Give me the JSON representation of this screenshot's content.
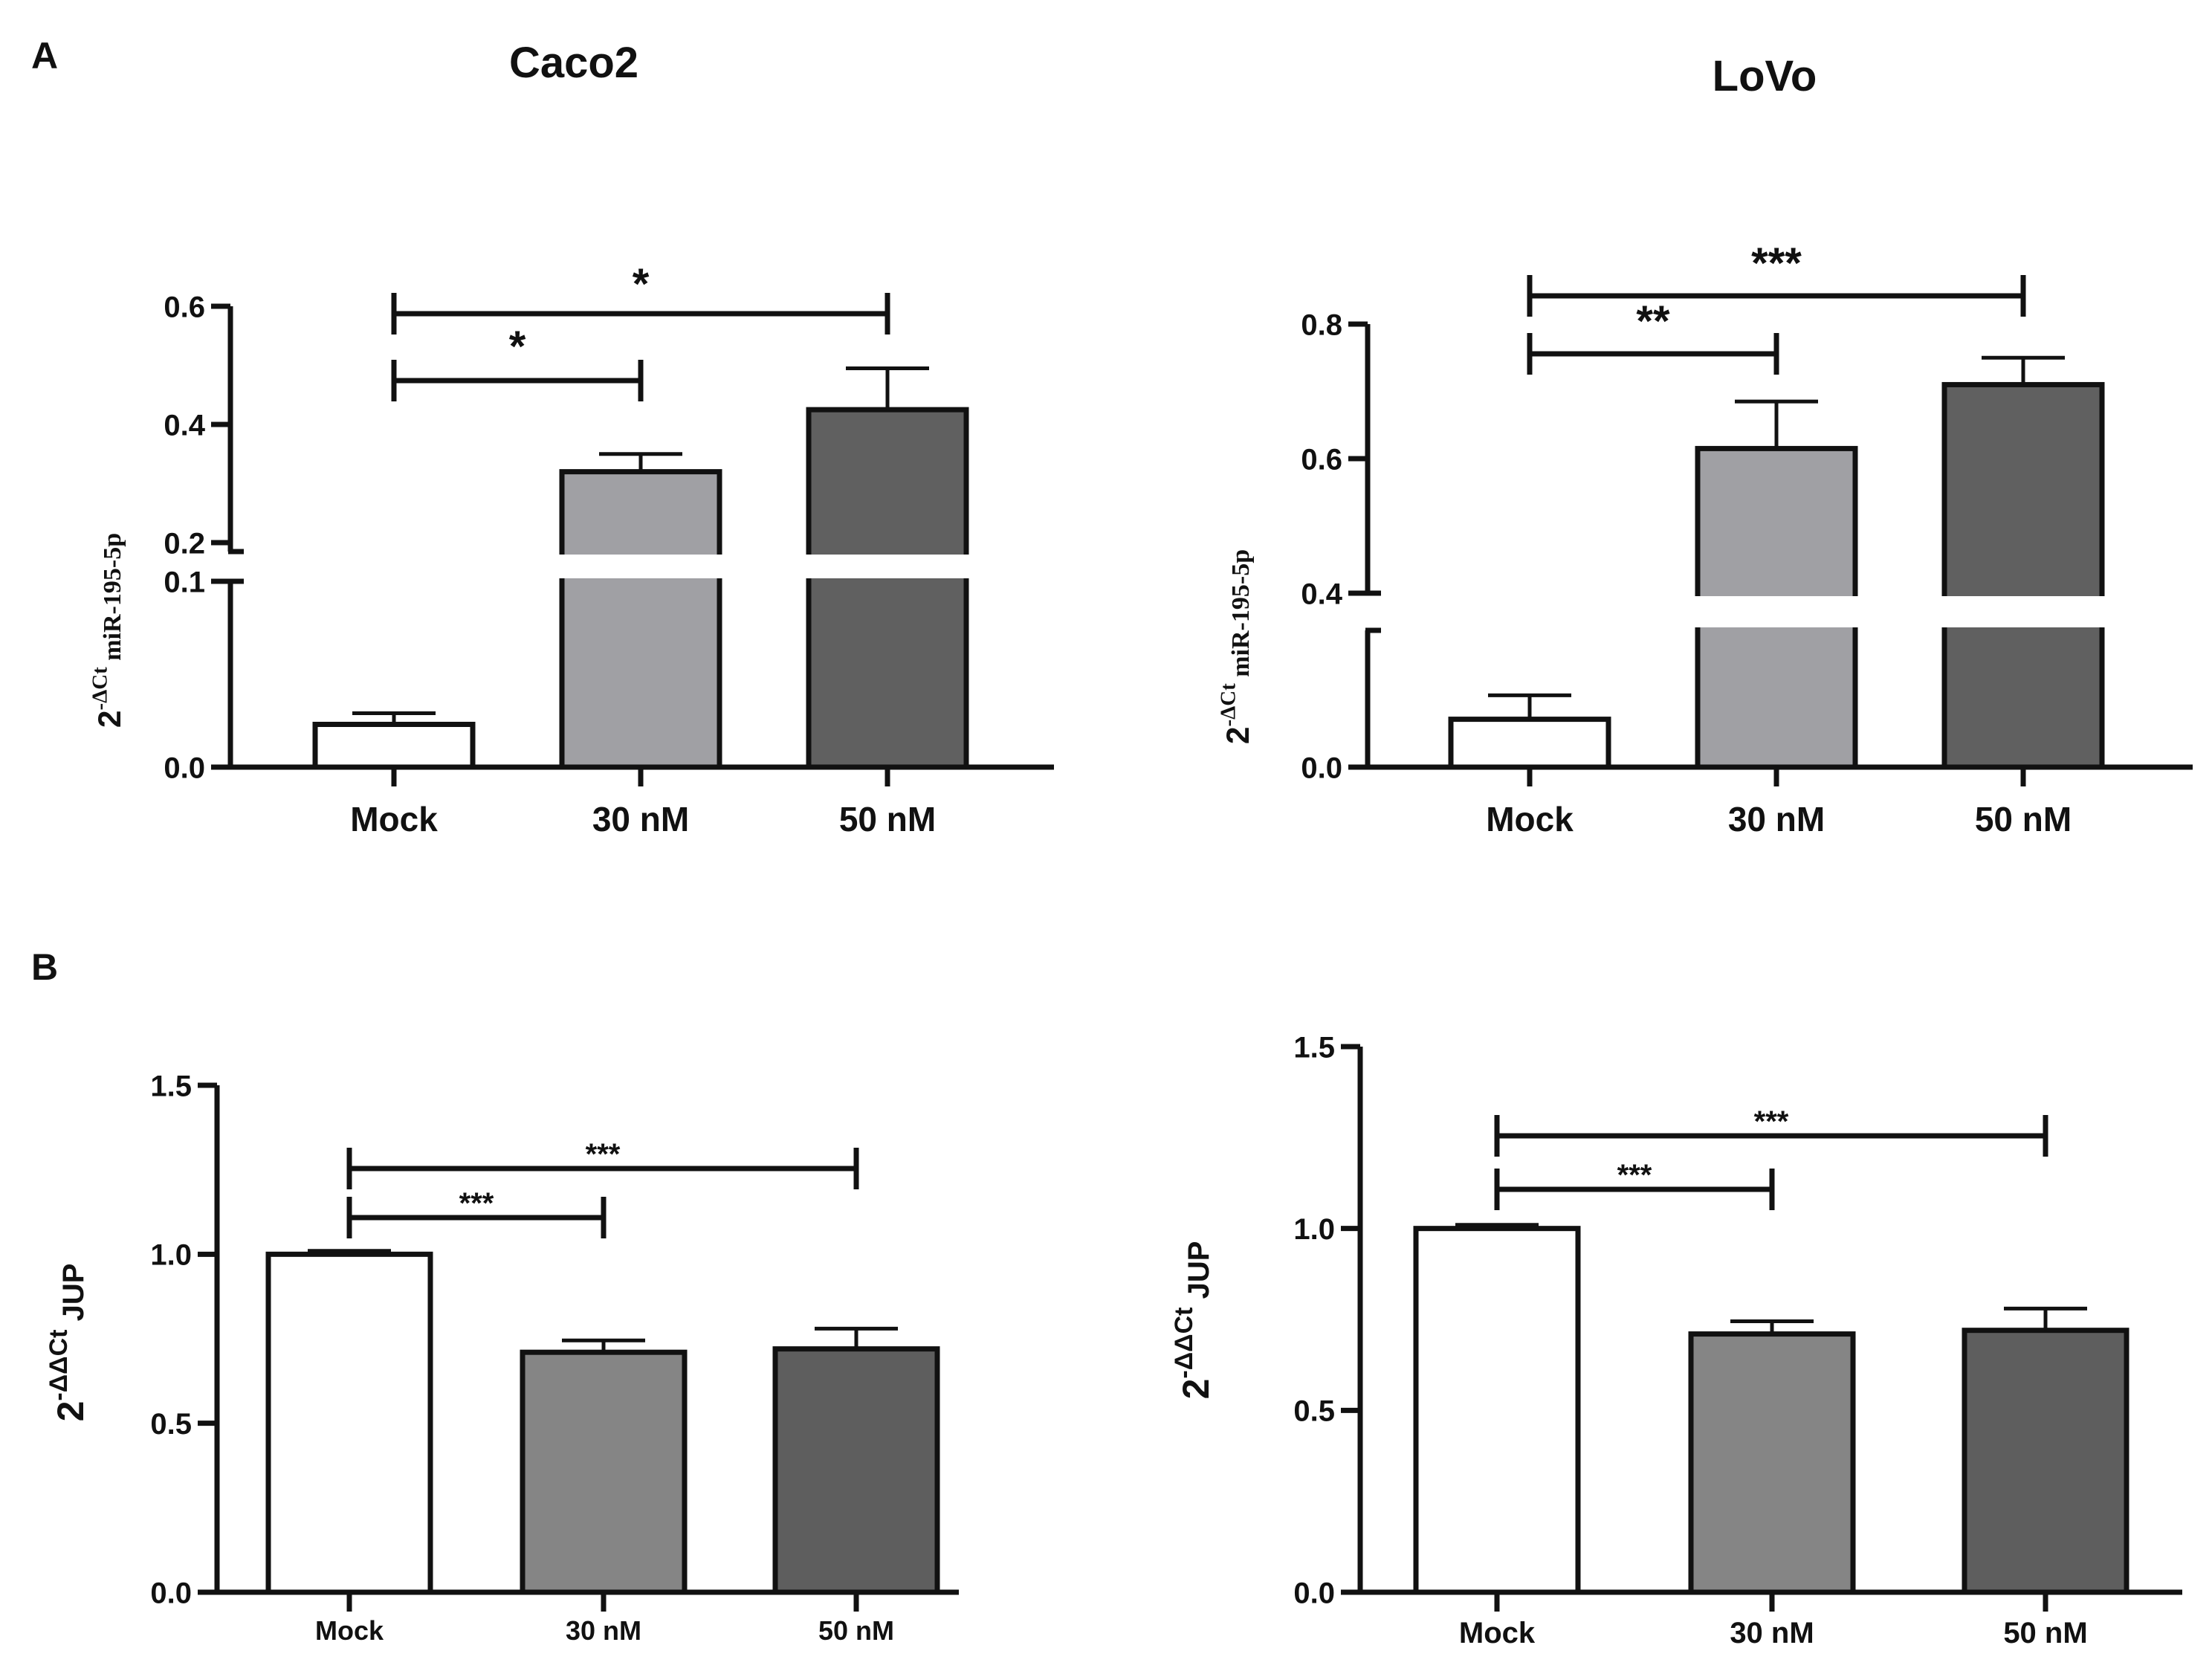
{
  "panels": {
    "A": "A",
    "B": "B"
  },
  "colors": {
    "axis": "#111111",
    "mock": "#ffffff",
    "nm30_A": "#a0a0a4",
    "nm50_A": "#606060",
    "nm30_B": "#858585",
    "nm50_B": "#5e5e5e"
  },
  "chart_data": [
    {
      "id": "caco2-mir",
      "panel": "A",
      "type": "bar",
      "title": "Caco2",
      "ylabel_base": "2",
      "ylabel_sup": "-ΔCt",
      "ylabel_rest": " miR-195-5p",
      "categories": [
        "Mock",
        "30 nM",
        "50 nM"
      ],
      "values": [
        0.023,
        0.32,
        0.425
      ],
      "errors": [
        0.006,
        0.03,
        0.07
      ],
      "axis_break": {
        "lower": [
          0,
          0.1
        ],
        "upper": [
          0.2,
          0.6
        ]
      },
      "yticks": [
        "0.0",
        "0.1",
        "0.2",
        "0.4",
        "0.6"
      ],
      "significance": [
        {
          "from": 0,
          "to": 1,
          "label": "*"
        },
        {
          "from": 0,
          "to": 2,
          "label": "*"
        }
      ]
    },
    {
      "id": "lovo-mir",
      "panel": "A",
      "type": "bar",
      "title": "LoVo",
      "ylabel_base": "2",
      "ylabel_sup": "-ΔCt",
      "ylabel_rest": " miR-195-5p",
      "categories": [
        "Mock",
        "30 nM",
        "50 nM"
      ],
      "values": [
        0.07,
        0.615,
        0.71
      ],
      "errors": [
        0.035,
        0.07,
        0.04
      ],
      "axis_break": {
        "lower": [
          0,
          0.2
        ],
        "upper": [
          0.4,
          0.8
        ]
      },
      "yticks": [
        "0.0",
        "0.4",
        "0.6",
        "0.8"
      ],
      "significance": [
        {
          "from": 0,
          "to": 1,
          "label": "**"
        },
        {
          "from": 0,
          "to": 2,
          "label": "***"
        }
      ]
    },
    {
      "id": "caco2-jup",
      "panel": "B",
      "type": "bar",
      "title": "",
      "ylabel_base": "2",
      "ylabel_sup": "-ΔΔCt",
      "ylabel_rest": " JUP",
      "categories": [
        "Mock",
        "30 nM",
        "50 nM"
      ],
      "values": [
        1.0,
        0.71,
        0.72
      ],
      "errors": [
        0.01,
        0.035,
        0.06
      ],
      "ylim": [
        0,
        1.5
      ],
      "yticks": [
        "0.0",
        "0.5",
        "1.0",
        "1.5"
      ],
      "significance": [
        {
          "from": 0,
          "to": 1,
          "label": "***"
        },
        {
          "from": 0,
          "to": 2,
          "label": "***"
        }
      ]
    },
    {
      "id": "lovo-jup",
      "panel": "B",
      "type": "bar",
      "title": "",
      "ylabel_base": "2",
      "ylabel_sup": "-ΔΔCt",
      "ylabel_rest": " JUP",
      "categories": [
        "Mock",
        "30 nM",
        "50 nM"
      ],
      "values": [
        1.0,
        0.71,
        0.72
      ],
      "errors": [
        0.01,
        0.035,
        0.06
      ],
      "ylim": [
        0,
        1.5
      ],
      "yticks": [
        "0.0",
        "0.5",
        "1.0",
        "1.5"
      ],
      "significance": [
        {
          "from": 0,
          "to": 1,
          "label": "***"
        },
        {
          "from": 0,
          "to": 2,
          "label": "***"
        }
      ]
    }
  ]
}
